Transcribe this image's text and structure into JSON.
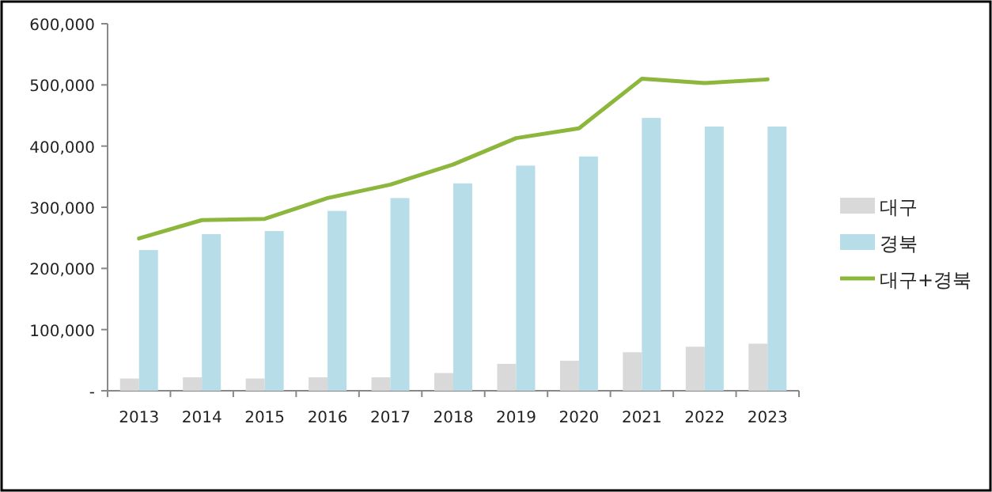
{
  "chart_data": {
    "type": "bar",
    "categories": [
      "2013",
      "2014",
      "2015",
      "2016",
      "2017",
      "2018",
      "2019",
      "2020",
      "2021",
      "2022",
      "2023"
    ],
    "series": [
      {
        "name": "대구",
        "color": "#d9d9d9",
        "values": [
          20000,
          22000,
          20000,
          22000,
          22000,
          29000,
          44000,
          49000,
          63000,
          72000,
          77000
        ]
      },
      {
        "name": "경북",
        "color": "#b7dde8",
        "values": [
          230000,
          256000,
          261000,
          294000,
          315000,
          339000,
          368000,
          383000,
          446000,
          432000,
          432000
        ]
      },
      {
        "name": "대구+경북",
        "type": "line",
        "color": "#8db63c",
        "values": [
          249000,
          279000,
          281000,
          315000,
          337000,
          370000,
          413000,
          429000,
          510000,
          503000,
          509000
        ]
      }
    ],
    "ylim": [
      0,
      600000
    ],
    "yticks": [
      {
        "value": 0,
        "label": "-"
      },
      {
        "value": 100000,
        "label": "100,000"
      },
      {
        "value": 200000,
        "label": "200,000"
      },
      {
        "value": 300000,
        "label": "300,000"
      },
      {
        "value": 400000,
        "label": "400,000"
      },
      {
        "value": 500000,
        "label": "500,000"
      },
      {
        "value": 600000,
        "label": "600,000"
      }
    ],
    "grid": false,
    "legend": "right",
    "marker": "none"
  }
}
